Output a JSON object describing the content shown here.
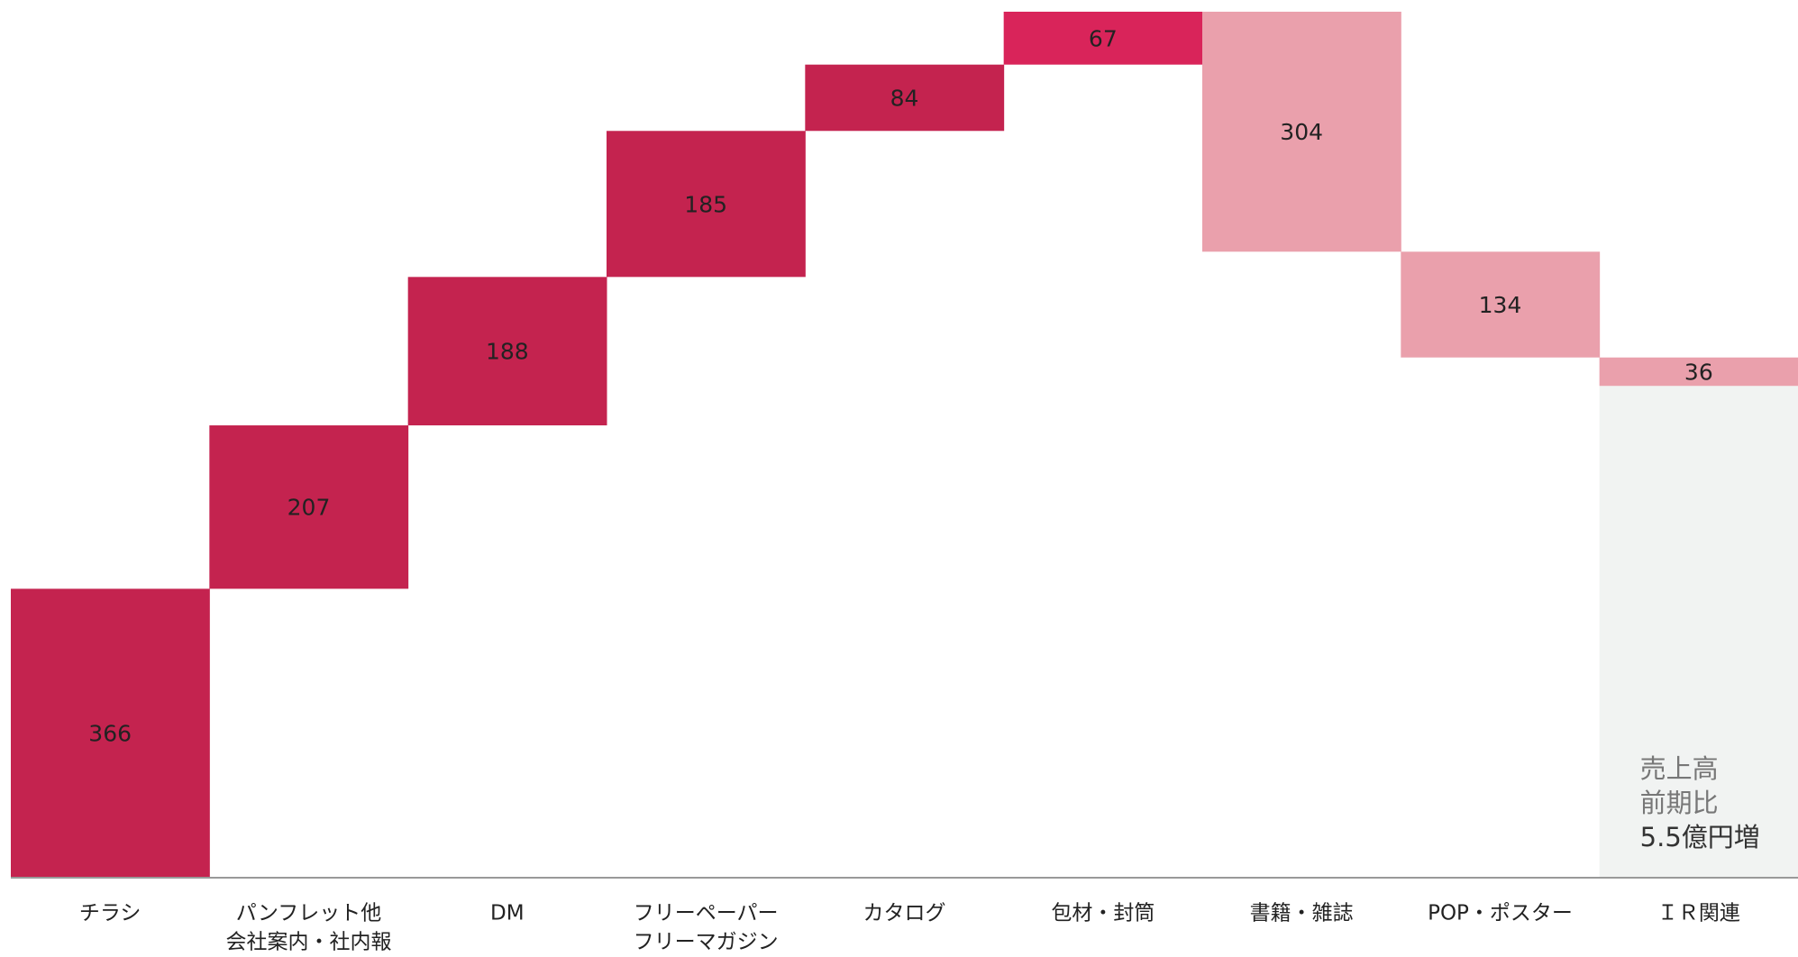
{
  "chart_data": {
    "type": "waterfall",
    "categories": [
      [
        "チラシ"
      ],
      [
        "パンフレット他",
        "会社案内・社内報"
      ],
      [
        "DM"
      ],
      [
        "フリーペーパー",
        "フリーマガジン"
      ],
      [
        "カタログ"
      ],
      [
        "包材・封筒"
      ],
      [
        "書籍・雑誌"
      ],
      [
        "POP・ポスター"
      ],
      [
        "ＩＲ関連"
      ]
    ],
    "values": [
      366,
      207,
      188,
      185,
      84,
      67,
      304,
      134,
      36
    ],
    "measures": [
      "increase",
      "increase",
      "increase",
      "increase",
      "increase",
      "increase",
      "decrease",
      "decrease",
      "decrease"
    ],
    "colors": [
      "#c4234f",
      "#c4234f",
      "#c4234f",
      "#c4234f",
      "#c4234f",
      "#d9245a",
      "#eaa0ac",
      "#eaa0ac",
      "#eaa0ac"
    ],
    "annotation": [
      "売上高",
      "前期比",
      "5.5億円増"
    ]
  }
}
